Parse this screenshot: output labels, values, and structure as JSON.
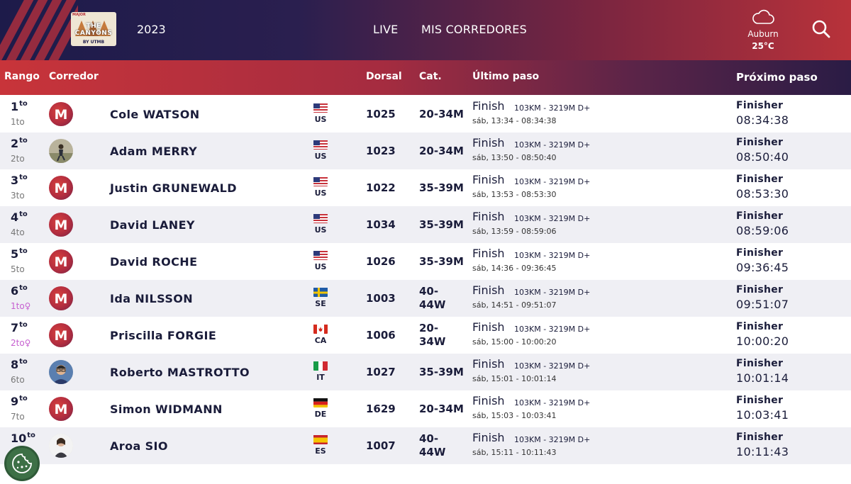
{
  "header": {
    "year": "2023",
    "logo": {
      "badge": "MAJOR",
      "name": "THE CANYONS",
      "tagline": "BY UTMB"
    },
    "nav": [
      {
        "label": "LIVE"
      },
      {
        "label": "MIS CORREDORES"
      }
    ],
    "weather": {
      "city": "Auburn",
      "temp": "25°C",
      "icon": "cloud-icon"
    }
  },
  "columns": {
    "rank": "Rango",
    "runner": "Corredor",
    "bib": "Dorsal",
    "category": "Cat.",
    "last": "Último paso",
    "next": "Próximo paso"
  },
  "rows": [
    {
      "rank": "1",
      "rank_sup": "to",
      "cat_rank": "1to",
      "female": false,
      "avatar": "utmb",
      "name": "Cole WATSON",
      "country": "US",
      "bib": "1025",
      "category": "20-34M",
      "last_label": "Finish",
      "last_dist": "103KM - 3219M D+",
      "last_time": "sáb, 13:34 - 08:34:38",
      "next_label": "Finisher",
      "next_time": "08:34:38"
    },
    {
      "rank": "2",
      "rank_sup": "to",
      "cat_rank": "2to",
      "female": false,
      "avatar": "photo",
      "name": "Adam MERRY",
      "country": "US",
      "bib": "1023",
      "category": "20-34M",
      "last_label": "Finish",
      "last_dist": "103KM - 3219M D+",
      "last_time": "sáb, 13:50 - 08:50:40",
      "next_label": "Finisher",
      "next_time": "08:50:40"
    },
    {
      "rank": "3",
      "rank_sup": "to",
      "cat_rank": "3to",
      "female": false,
      "avatar": "utmb",
      "name": "Justin GRUNEWALD",
      "country": "US",
      "bib": "1022",
      "category": "35-39M",
      "last_label": "Finish",
      "last_dist": "103KM - 3219M D+",
      "last_time": "sáb, 13:53 - 08:53:30",
      "next_label": "Finisher",
      "next_time": "08:53:30"
    },
    {
      "rank": "4",
      "rank_sup": "to",
      "cat_rank": "4to",
      "female": false,
      "avatar": "utmb",
      "name": "David LANEY",
      "country": "US",
      "bib": "1034",
      "category": "35-39M",
      "last_label": "Finish",
      "last_dist": "103KM - 3219M D+",
      "last_time": "sáb, 13:59 - 08:59:06",
      "next_label": "Finisher",
      "next_time": "08:59:06"
    },
    {
      "rank": "5",
      "rank_sup": "to",
      "cat_rank": "5to",
      "female": false,
      "avatar": "utmb",
      "name": "David ROCHE",
      "country": "US",
      "bib": "1026",
      "category": "35-39M",
      "last_label": "Finish",
      "last_dist": "103KM - 3219M D+",
      "last_time": "sáb, 14:36 - 09:36:45",
      "next_label": "Finisher",
      "next_time": "09:36:45"
    },
    {
      "rank": "6",
      "rank_sup": "to",
      "cat_rank": "1to♀",
      "female": true,
      "avatar": "utmb",
      "name": "Ida NILSSON",
      "country": "SE",
      "bib": "1003",
      "category": "40-44W",
      "last_label": "Finish",
      "last_dist": "103KM - 3219M D+",
      "last_time": "sáb, 14:51 - 09:51:07",
      "next_label": "Finisher",
      "next_time": "09:51:07"
    },
    {
      "rank": "7",
      "rank_sup": "to",
      "cat_rank": "2to♀",
      "female": true,
      "avatar": "utmb",
      "name": "Priscilla FORGIE",
      "country": "CA",
      "bib": "1006",
      "category": "20-34W",
      "last_label": "Finish",
      "last_dist": "103KM - 3219M D+",
      "last_time": "sáb, 15:00 - 10:00:20",
      "next_label": "Finisher",
      "next_time": "10:00:20"
    },
    {
      "rank": "8",
      "rank_sup": "to",
      "cat_rank": "6to",
      "female": false,
      "avatar": "photo",
      "name": "Roberto MASTROTTO",
      "country": "IT",
      "bib": "1027",
      "category": "35-39M",
      "last_label": "Finish",
      "last_dist": "103KM - 3219M D+",
      "last_time": "sáb, 15:01 - 10:01:14",
      "next_label": "Finisher",
      "next_time": "10:01:14"
    },
    {
      "rank": "9",
      "rank_sup": "to",
      "cat_rank": "7to",
      "female": false,
      "avatar": "utmb",
      "name": "Simon WIDMANN",
      "country": "DE",
      "bib": "1629",
      "category": "20-34M",
      "last_label": "Finish",
      "last_dist": "103KM - 3219M D+",
      "last_time": "sáb, 15:03 - 10:03:41",
      "next_label": "Finisher",
      "next_time": "10:03:41"
    },
    {
      "rank": "10",
      "rank_sup": "to",
      "cat_rank": "",
      "female": true,
      "avatar": "photo",
      "name": "Aroa SIO",
      "country": "ES",
      "bib": "1007",
      "category": "40-44W",
      "last_label": "Finish",
      "last_dist": "103KM - 3219M D+",
      "last_time": "sáb, 15:11 - 10:11:43",
      "next_label": "Finisher",
      "next_time": "10:11:43"
    }
  ],
  "colors": {
    "dark": "#1a1c3a",
    "accent": "#c8343a",
    "female": "#c65fd0"
  }
}
